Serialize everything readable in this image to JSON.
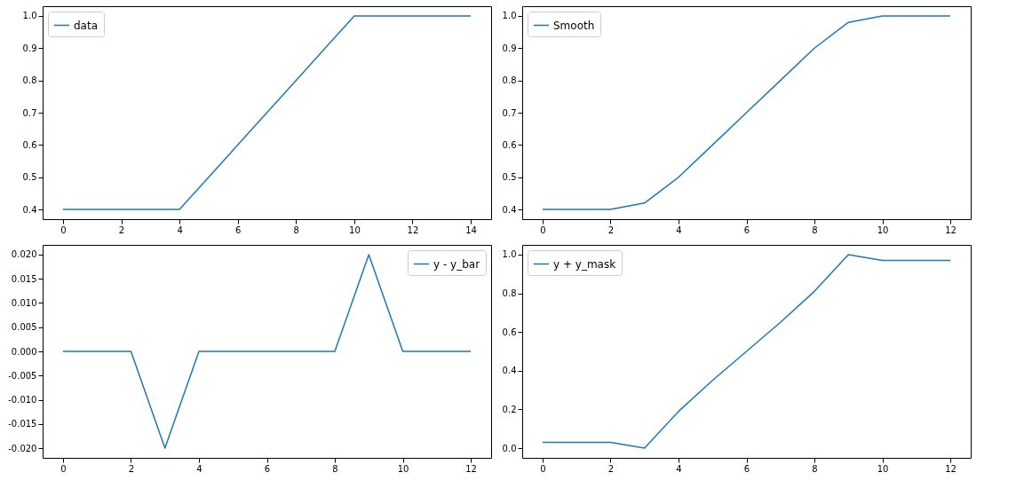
{
  "chart_data": [
    {
      "type": "line",
      "x": [
        0,
        1,
        2,
        3,
        4,
        5,
        6,
        7,
        8,
        9,
        10,
        11,
        12,
        13,
        14
      ],
      "series": [
        {
          "name": "data",
          "color": "#1f77b4",
          "values": [
            0.4,
            0.4,
            0.4,
            0.4,
            0.4,
            0.5,
            0.6,
            0.7,
            0.8,
            0.9,
            1.0,
            1.0,
            1.0,
            1.0,
            1.0
          ]
        }
      ],
      "xlim": [
        -0.7,
        14.7
      ],
      "xticks": [
        0,
        2,
        4,
        6,
        8,
        10,
        12,
        14
      ],
      "ylim": [
        0.37,
        1.03
      ],
      "yticks": [
        0.4,
        0.5,
        0.6,
        0.7,
        0.8,
        0.9,
        {
          "value": 1.0,
          "label": "1.0"
        }
      ],
      "legend": "top left",
      "grid": false
    },
    {
      "type": "line",
      "x": [
        0,
        1,
        2,
        3,
        4,
        5,
        6,
        7,
        8,
        9,
        10,
        11,
        12
      ],
      "series": [
        {
          "name": "Smooth",
          "color": "#1f77b4",
          "values": [
            0.4,
            0.4,
            0.4,
            0.42,
            0.5,
            0.6,
            0.7,
            0.8,
            0.9,
            0.98,
            1.0,
            1.0,
            1.0
          ]
        }
      ],
      "xlim": [
        -0.6,
        12.6
      ],
      "xticks": [
        0,
        2,
        4,
        6,
        8,
        10,
        12
      ],
      "ylim": [
        0.37,
        1.03
      ],
      "yticks": [
        0.4,
        0.5,
        0.6,
        0.7,
        0.8,
        0.9,
        {
          "value": 1.0,
          "label": "1.0"
        }
      ],
      "legend": "top left",
      "grid": false
    },
    {
      "type": "line",
      "x": [
        0,
        1,
        2,
        3,
        4,
        5,
        6,
        7,
        8,
        9,
        10,
        11,
        12
      ],
      "series": [
        {
          "name": "y - y_bar",
          "color": "#1f77b4",
          "values": [
            0,
            0,
            0,
            -0.02,
            0,
            0,
            0,
            0,
            0,
            0.02,
            0,
            0,
            0
          ]
        }
      ],
      "xlim": [
        -0.6,
        12.6
      ],
      "xticks": [
        0,
        2,
        4,
        6,
        8,
        10,
        12
      ],
      "ylim": [
        -0.022,
        0.022
      ],
      "yticks": [
        {
          "value": -0.02,
          "label": "-0.020"
        },
        {
          "value": -0.015,
          "label": "-0.015"
        },
        {
          "value": -0.01,
          "label": "-0.010"
        },
        {
          "value": -0.005,
          "label": "-0.005"
        },
        {
          "value": 0,
          "label": "0.000"
        },
        {
          "value": 0.005,
          "label": "0.005"
        },
        {
          "value": 0.01,
          "label": "0.010"
        },
        {
          "value": 0.015,
          "label": "0.015"
        },
        {
          "value": 0.02,
          "label": "0.020"
        }
      ],
      "legend": "top right",
      "grid": false
    },
    {
      "type": "line",
      "x": [
        0,
        1,
        2,
        3,
        4,
        5,
        6,
        7,
        8,
        9,
        10,
        11,
        12
      ],
      "series": [
        {
          "name": "y + y_mask",
          "color": "#1f77b4",
          "values": [
            0.03,
            0.03,
            0.03,
            0.0,
            0.19,
            0.35,
            0.5,
            0.65,
            0.81,
            1.0,
            0.97,
            0.97,
            0.97
          ]
        }
      ],
      "xlim": [
        -0.6,
        12.6
      ],
      "xticks": [
        0,
        2,
        4,
        6,
        8,
        10,
        12
      ],
      "ylim": [
        -0.05,
        1.05
      ],
      "yticks": [
        {
          "value": 0,
          "label": "0.0"
        },
        0.2,
        0.4,
        0.6,
        0.8,
        {
          "value": 1.0,
          "label": "1.0"
        }
      ],
      "legend": "top left",
      "grid": false
    }
  ]
}
